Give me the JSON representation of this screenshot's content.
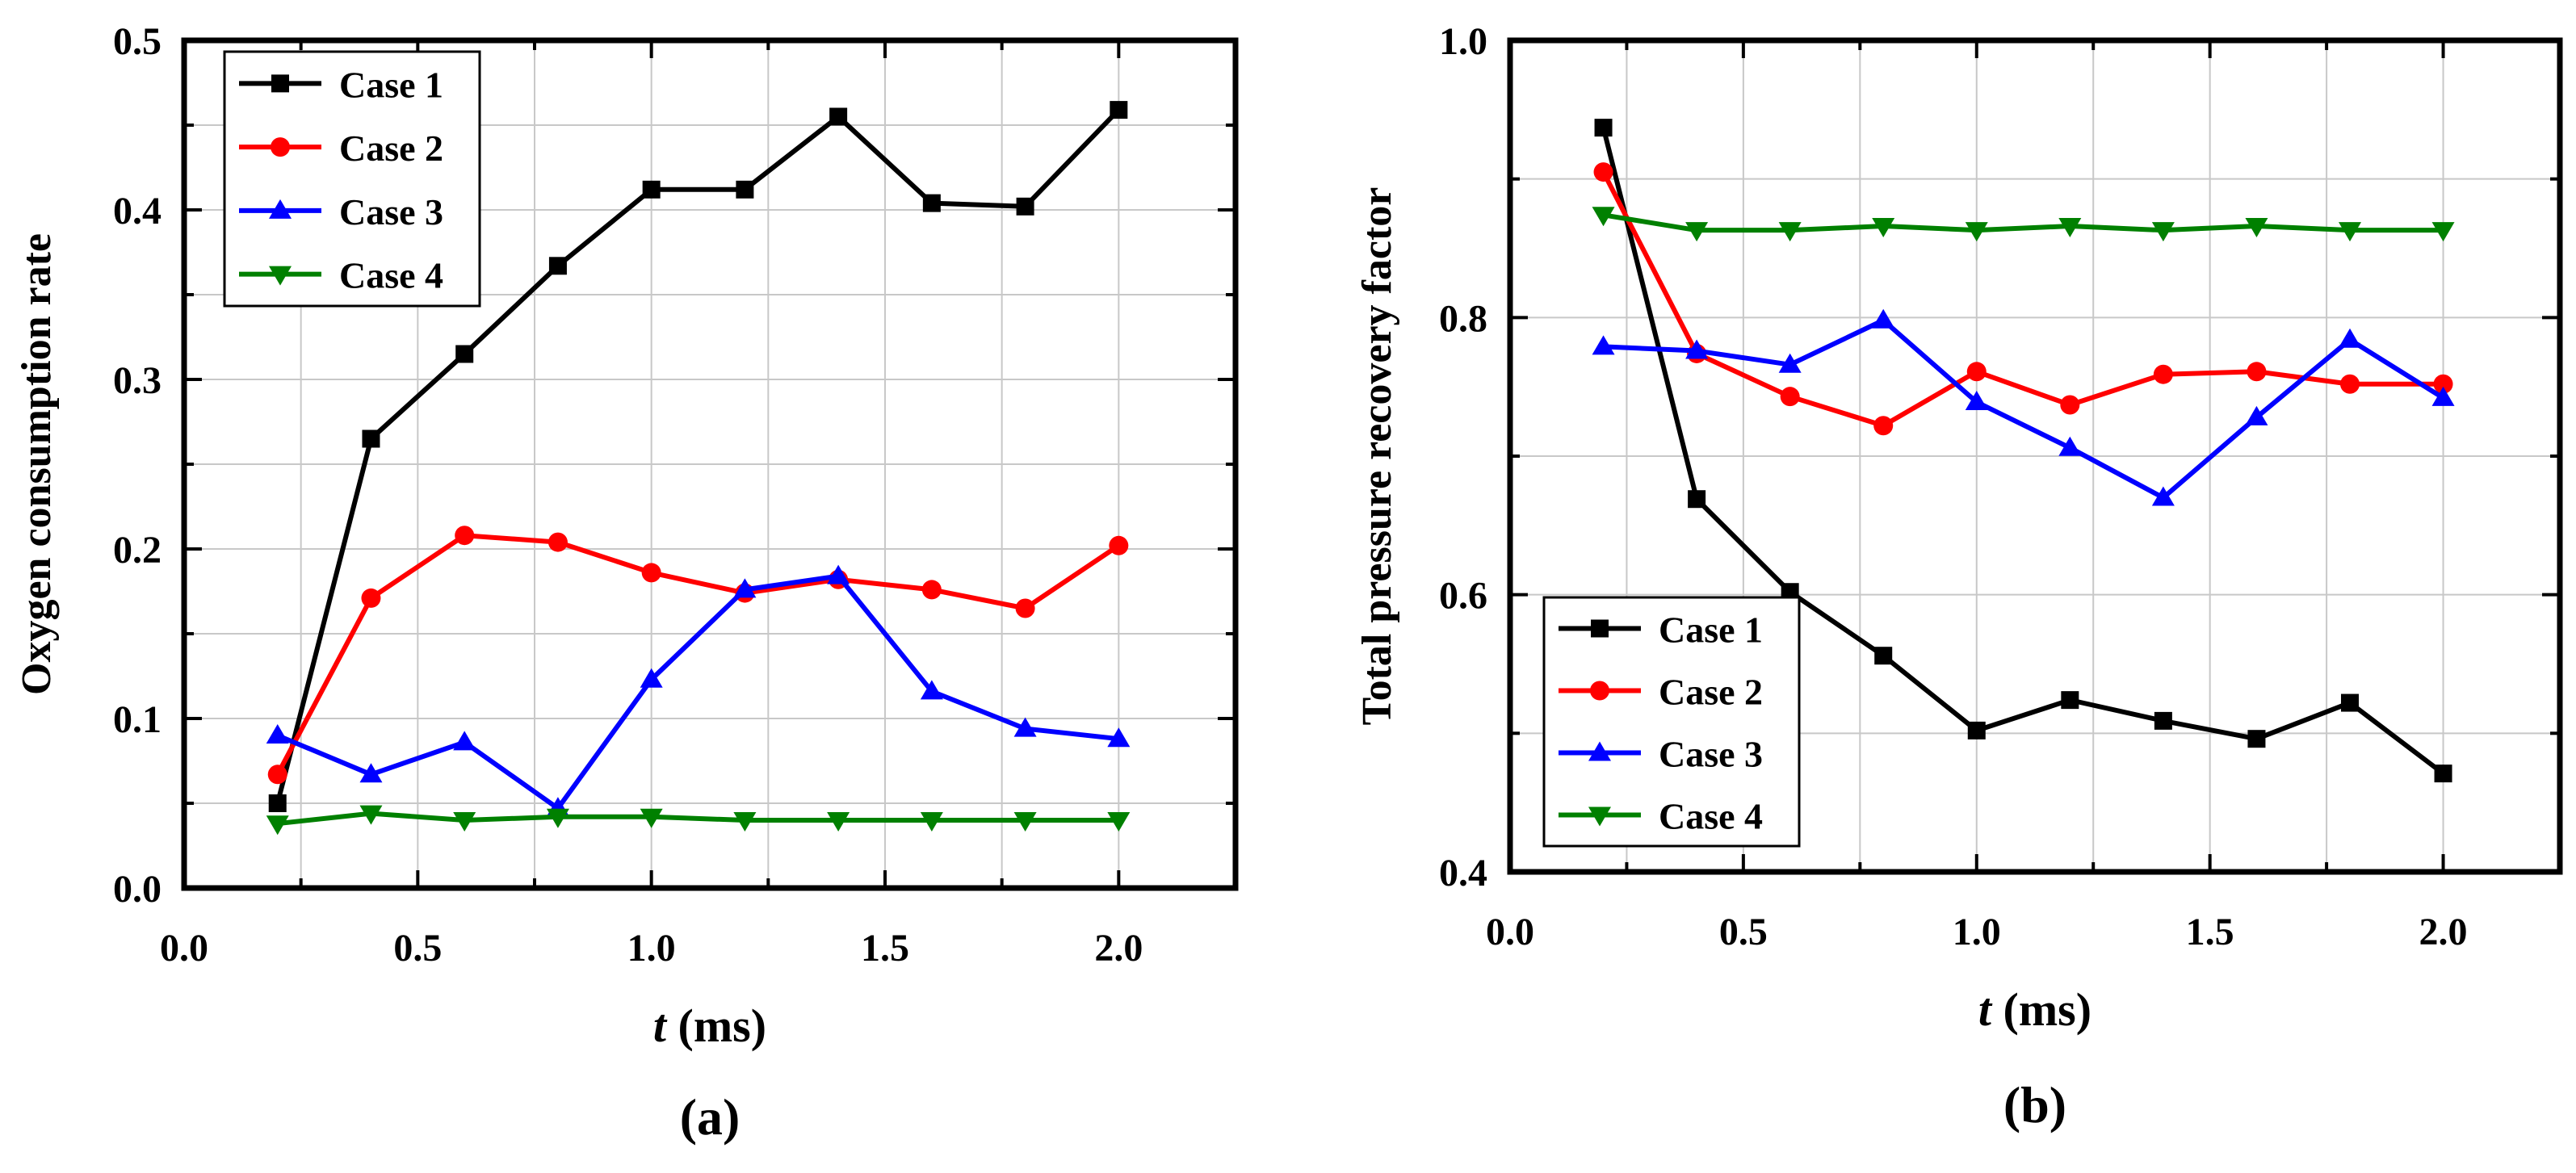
{
  "chart_data": [
    {
      "panel": "(a)",
      "type": "line",
      "title": "",
      "xlabel_italic": "t",
      "xlabel_rest": " (ms)",
      "ylabel": "Oxygen consumption rate",
      "xlim": [
        0.0,
        2.25
      ],
      "ylim": [
        0.0,
        0.5
      ],
      "grid": true,
      "xticks": [
        0.0,
        0.5,
        1.0,
        1.5,
        2.0
      ],
      "xtick_labels": [
        "0.0",
        "0.5",
        "1.0",
        "1.5",
        "2.0"
      ],
      "yticks": [
        0.0,
        0.1,
        0.2,
        0.3,
        0.4,
        0.5
      ],
      "ytick_labels": [
        "0.0",
        "0.1",
        "0.2",
        "0.3",
        "0.4",
        "0.5"
      ],
      "legend_position": "top-left",
      "x": [
        0.2,
        0.4,
        0.6,
        0.8,
        1.0,
        1.2,
        1.4,
        1.6,
        1.8,
        2.0
      ],
      "series": [
        {
          "name": "Case 1",
          "color": "#000000",
          "marker": "square",
          "values": [
            0.05,
            0.265,
            0.315,
            0.367,
            0.412,
            0.412,
            0.455,
            0.404,
            0.402,
            0.459
          ]
        },
        {
          "name": "Case 2",
          "color": "#ff0000",
          "marker": "circle",
          "values": [
            0.067,
            0.171,
            0.208,
            0.204,
            0.186,
            0.174,
            0.182,
            0.176,
            0.165,
            0.202
          ]
        },
        {
          "name": "Case 3",
          "color": "#0000ff",
          "marker": "triangle-up",
          "values": [
            0.09,
            0.067,
            0.086,
            0.047,
            0.123,
            0.176,
            0.184,
            0.116,
            0.094,
            0.088
          ]
        },
        {
          "name": "Case 4",
          "color": "#008000",
          "marker": "triangle-down",
          "values": [
            0.038,
            0.044,
            0.04,
            0.042,
            0.042,
            0.04,
            0.04,
            0.04,
            0.04,
            0.04
          ]
        }
      ]
    },
    {
      "panel": "(b)",
      "type": "line",
      "title": "",
      "xlabel_italic": "t",
      "xlabel_rest": " (ms)",
      "ylabel": "Total pressure recovery factor",
      "xlim": [
        0.0,
        2.25
      ],
      "ylim": [
        0.4,
        1.0
      ],
      "grid": true,
      "xticks": [
        0.0,
        0.5,
        1.0,
        1.5,
        2.0
      ],
      "xtick_labels": [
        "0.0",
        "0.5",
        "1.0",
        "1.5",
        "2.0"
      ],
      "yticks": [
        0.4,
        0.6,
        0.8,
        1.0
      ],
      "ytick_labels": [
        "0.4",
        "0.6",
        "0.8",
        "1.0"
      ],
      "legend_position": "bottom-left",
      "x": [
        0.2,
        0.4,
        0.6,
        0.8,
        1.0,
        1.2,
        1.4,
        1.6,
        1.8,
        2.0
      ],
      "series": [
        {
          "name": "Case 1",
          "color": "#000000",
          "marker": "square",
          "values": [
            0.937,
            0.669,
            0.602,
            0.556,
            0.502,
            0.524,
            0.509,
            0.496,
            0.522,
            0.471
          ]
        },
        {
          "name": "Case 2",
          "color": "#ff0000",
          "marker": "circle",
          "values": [
            0.905,
            0.774,
            0.743,
            0.722,
            0.761,
            0.737,
            0.759,
            0.761,
            0.752,
            0.752
          ]
        },
        {
          "name": "Case 3",
          "color": "#0000ff",
          "marker": "triangle-up",
          "values": [
            0.779,
            0.776,
            0.766,
            0.798,
            0.739,
            0.706,
            0.67,
            0.728,
            0.784,
            0.742
          ]
        },
        {
          "name": "Case 4",
          "color": "#008000",
          "marker": "triangle-down",
          "values": [
            0.874,
            0.863,
            0.863,
            0.866,
            0.863,
            0.866,
            0.863,
            0.866,
            0.863,
            0.863
          ]
        }
      ]
    }
  ]
}
